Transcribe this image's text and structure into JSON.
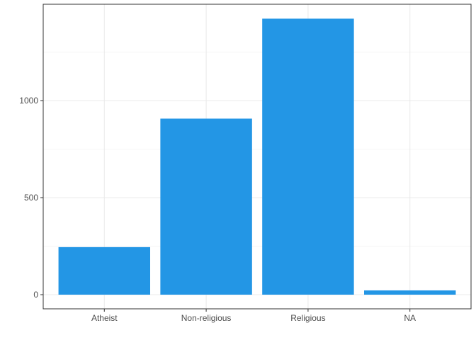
{
  "chart_data": {
    "type": "bar",
    "title": "",
    "xlabel": "",
    "ylabel": "",
    "categories": [
      "Atheist",
      "Non-religious",
      "Religious",
      "NA"
    ],
    "values": [
      245,
      907,
      1422,
      22
    ],
    "ylim": [
      0,
      1500
    ],
    "yticks": [
      0,
      500,
      1000
    ],
    "ytick_labels": [
      "0",
      "500",
      "1000"
    ],
    "grid": true,
    "legend": "none",
    "bar_color": "#2396E5",
    "grid_color": "#EBEBEB",
    "axis_color": "#333333"
  }
}
